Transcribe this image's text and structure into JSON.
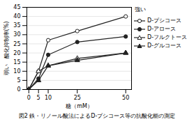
{
  "chart_data": {
    "type": "line",
    "title": "図2 鉄・リノール酸法によるD-プシコース等の抗酸化能の測定",
    "xlabel": "糖（mM）",
    "ylabel": "弱い　酸化抑制率(%)",
    "annotation": "強い",
    "x": [
      0,
      5,
      10,
      25,
      50
    ],
    "series": [
      {
        "name": "D-プシコース",
        "values": [
          0,
          10,
          27,
          32,
          40
        ],
        "color": "#222222",
        "marker": "circle-open"
      },
      {
        "name": "D-アロース",
        "values": [
          0,
          6,
          19,
          26,
          29
        ],
        "color": "#222222",
        "marker": "circle-filled"
      },
      {
        "name": "D-フルクトース",
        "values": [
          0,
          10,
          13,
          17,
          20
        ],
        "color": "#222222",
        "marker": "triangle-open"
      },
      {
        "name": "D-グルコース",
        "values": [
          0,
          5,
          13,
          16,
          20
        ],
        "color": "#222222",
        "marker": "triangle-filled"
      }
    ],
    "xlim": [
      -1,
      53
    ],
    "xticks": [
      0,
      5,
      10,
      25,
      50
    ],
    "ylim": [
      0,
      45
    ],
    "yticks": [
      0,
      5,
      10,
      15,
      20,
      25,
      30,
      35,
      40,
      45
    ],
    "grid": "y",
    "legend": "upper right"
  }
}
